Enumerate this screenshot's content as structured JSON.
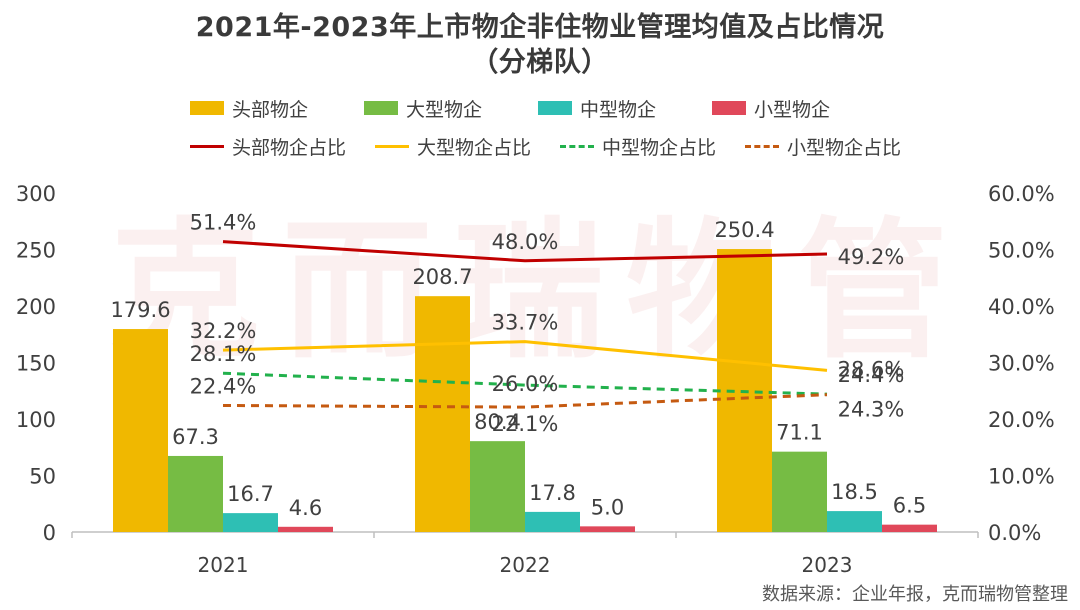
{
  "title_line1": "2021年-2023年上市物企非住物业管理均值及占比情况",
  "title_line2": "（分梯队）",
  "watermark": "克而瑞物管",
  "source": "数据来源：企业年报，克而瑞物管整理",
  "legend": {
    "bars": [
      {
        "label": "头部物企",
        "color": "#f0b800"
      },
      {
        "label": "大型物企",
        "color": "#76bc44"
      },
      {
        "label": "中型物企",
        "color": "#2ebfb4"
      },
      {
        "label": "小型物企",
        "color": "#e0485a"
      }
    ],
    "lines": [
      {
        "label": "头部物企占比",
        "color": "#c00000",
        "style": "solid"
      },
      {
        "label": "大型物企占比",
        "color": "#ffc000",
        "style": "solid"
      },
      {
        "label": "中型物企占比",
        "color": "#22b14c",
        "style": "dashed"
      },
      {
        "label": "小型物企占比",
        "color": "#c55a11",
        "style": "dashed"
      }
    ]
  },
  "chart_data": {
    "type": "bar",
    "categories": [
      "2021",
      "2022",
      "2023"
    ],
    "y_left": {
      "min": 0,
      "max": 300,
      "ticks": [
        "0",
        "50",
        "100",
        "150",
        "200",
        "250",
        "300"
      ]
    },
    "y_right": {
      "min": 0,
      "max": 60,
      "ticks": [
        "0.0%",
        "10.0%",
        "20.0%",
        "30.0%",
        "40.0%",
        "50.0%",
        "60.0%"
      ]
    },
    "series": [
      {
        "name": "头部物企",
        "kind": "bar",
        "axis": "left",
        "color": "#f0b800",
        "values": [
          179.6,
          208.7,
          250.4
        ],
        "labels": [
          "179.6",
          "208.7",
          "250.4"
        ]
      },
      {
        "name": "大型物企",
        "kind": "bar",
        "axis": "left",
        "color": "#76bc44",
        "values": [
          67.3,
          80.4,
          71.1
        ],
        "labels": [
          "67.3",
          "80.4",
          "71.1"
        ]
      },
      {
        "name": "中型物企",
        "kind": "bar",
        "axis": "left",
        "color": "#2ebfb4",
        "values": [
          16.7,
          17.8,
          18.5
        ],
        "labels": [
          "16.7",
          "17.8",
          "18.5"
        ]
      },
      {
        "name": "小型物企",
        "kind": "bar",
        "axis": "left",
        "color": "#e0485a",
        "values": [
          4.6,
          5.0,
          6.5
        ],
        "labels": [
          "4.6",
          "5.0",
          "6.5"
        ]
      },
      {
        "name": "头部物企占比",
        "kind": "line",
        "axis": "right",
        "color": "#c00000",
        "style": "solid",
        "values": [
          51.4,
          48.0,
          49.2
        ],
        "labels": [
          "51.4%",
          "48.0%",
          "49.2%"
        ]
      },
      {
        "name": "大型物企占比",
        "kind": "line",
        "axis": "right",
        "color": "#ffc000",
        "style": "solid",
        "values": [
          32.2,
          33.7,
          28.6
        ],
        "labels": [
          "32.2%",
          "33.7%",
          "28.6%"
        ]
      },
      {
        "name": "中型物企占比",
        "kind": "line",
        "axis": "right",
        "color": "#22b14c",
        "style": "dashed",
        "values": [
          28.1,
          26.0,
          24.4
        ],
        "labels": [
          "28.1%",
          "26.0%",
          "24.4%"
        ]
      },
      {
        "name": "小型物企占比",
        "kind": "line",
        "axis": "right",
        "color": "#c55a11",
        "style": "dashed",
        "values": [
          22.4,
          22.1,
          24.3
        ],
        "labels": [
          "22.4%",
          "22.1%",
          "24.3%"
        ]
      }
    ]
  }
}
